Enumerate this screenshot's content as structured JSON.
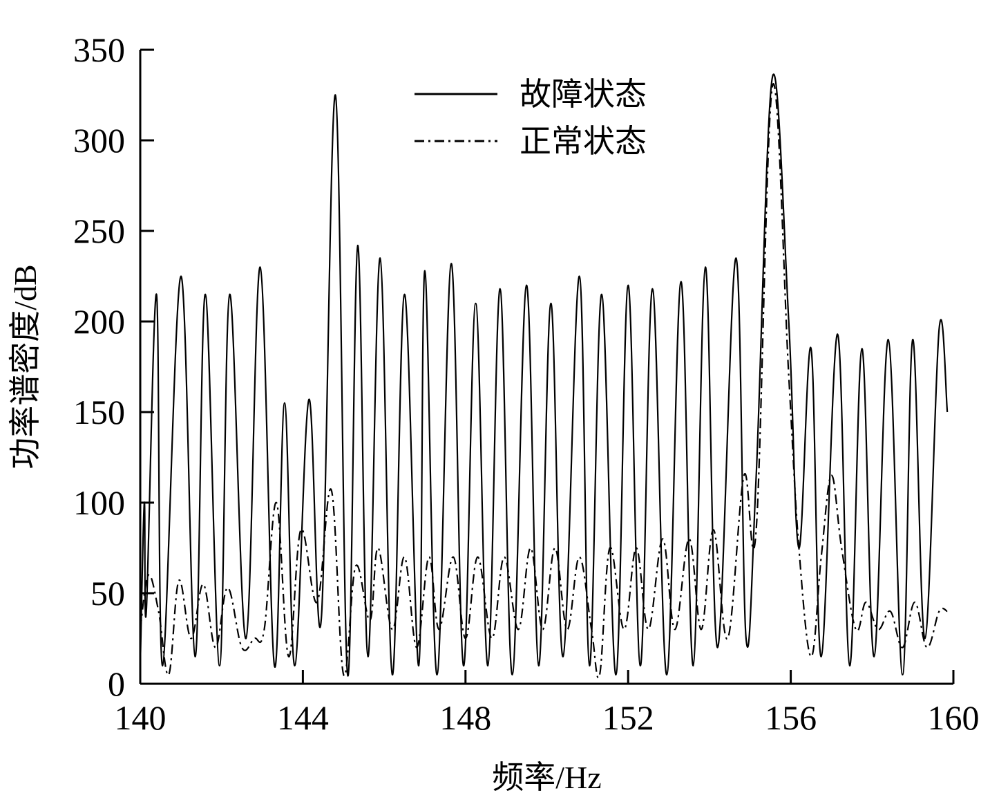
{
  "chart_data": {
    "type": "line",
    "title": "",
    "xlabel": "频率/Hz",
    "ylabel": "功率谱密度/dB",
    "xlim": [
      140,
      160
    ],
    "ylim": [
      0,
      350
    ],
    "x_ticks": [
      140,
      144,
      148,
      152,
      156,
      160
    ],
    "x_tick_labels": [
      "140",
      "144",
      "148",
      "152",
      "156",
      "160"
    ],
    "y_ticks": [
      0,
      50,
      100,
      150,
      200,
      250,
      300,
      350
    ],
    "y_tick_labels": [
      "0",
      "50",
      "100",
      "150",
      "200",
      "250",
      "300",
      "350"
    ],
    "grid": false,
    "legend_position": "top-center",
    "series": [
      {
        "name": "故障状态",
        "line_style": "solid",
        "color": "#000000",
        "peaks": [
          [
            140.0,
            10
          ],
          [
            140.1,
            100
          ],
          [
            140.15,
            40
          ],
          [
            140.4,
            215
          ],
          [
            140.55,
            10
          ],
          [
            141.0,
            225
          ],
          [
            141.35,
            15
          ],
          [
            141.6,
            215
          ],
          [
            141.95,
            10
          ],
          [
            142.2,
            215
          ],
          [
            142.6,
            25
          ],
          [
            142.95,
            230
          ],
          [
            143.3,
            10
          ],
          [
            143.55,
            155
          ],
          [
            143.8,
            10
          ],
          [
            144.15,
            157
          ],
          [
            144.45,
            35
          ],
          [
            144.8,
            325
          ],
          [
            145.1,
            5
          ],
          [
            145.35,
            242
          ],
          [
            145.6,
            15
          ],
          [
            145.9,
            235
          ],
          [
            146.2,
            5
          ],
          [
            146.5,
            215
          ],
          [
            146.85,
            10
          ],
          [
            147.0,
            228
          ],
          [
            147.3,
            5
          ],
          [
            147.65,
            232
          ],
          [
            147.95,
            10
          ],
          [
            148.25,
            210
          ],
          [
            148.55,
            10
          ],
          [
            148.85,
            218
          ],
          [
            149.15,
            5
          ],
          [
            149.5,
            220
          ],
          [
            149.8,
            10
          ],
          [
            150.1,
            210
          ],
          [
            150.4,
            15
          ],
          [
            150.8,
            225
          ],
          [
            151.05,
            10
          ],
          [
            151.35,
            215
          ],
          [
            151.7,
            5
          ],
          [
            152.0,
            220
          ],
          [
            152.3,
            10
          ],
          [
            152.6,
            218
          ],
          [
            152.95,
            5
          ],
          [
            153.3,
            222
          ],
          [
            153.6,
            10
          ],
          [
            153.9,
            230
          ],
          [
            154.2,
            20
          ],
          [
            154.65,
            235
          ],
          [
            154.9,
            25
          ],
          [
            155.15,
            115
          ],
          [
            155.55,
            335
          ],
          [
            155.95,
            200
          ],
          [
            156.2,
            75
          ],
          [
            156.5,
            185
          ],
          [
            156.75,
            15
          ],
          [
            157.15,
            193
          ],
          [
            157.45,
            10
          ],
          [
            157.75,
            185
          ],
          [
            158.05,
            15
          ],
          [
            158.4,
            190
          ],
          [
            158.75,
            5
          ],
          [
            159.0,
            190
          ],
          [
            159.3,
            25
          ],
          [
            159.65,
            196
          ],
          [
            159.85,
            150
          ]
        ]
      },
      {
        "name": "正常状态",
        "line_style": "dashdot",
        "color": "#000000",
        "peaks": [
          [
            140.0,
            30
          ],
          [
            140.2,
            60
          ],
          [
            140.45,
            40
          ],
          [
            140.7,
            5
          ],
          [
            140.95,
            57
          ],
          [
            141.25,
            25
          ],
          [
            141.55,
            55
          ],
          [
            141.85,
            20
          ],
          [
            142.15,
            53
          ],
          [
            142.5,
            20
          ],
          [
            142.8,
            25
          ],
          [
            143.05,
            30
          ],
          [
            143.35,
            100
          ],
          [
            143.65,
            15
          ],
          [
            143.95,
            85
          ],
          [
            144.35,
            45
          ],
          [
            144.7,
            107
          ],
          [
            145.0,
            5
          ],
          [
            145.3,
            65
          ],
          [
            145.65,
            35
          ],
          [
            145.85,
            75
          ],
          [
            146.2,
            30
          ],
          [
            146.5,
            70
          ],
          [
            146.8,
            20
          ],
          [
            147.1,
            70
          ],
          [
            147.35,
            30
          ],
          [
            147.7,
            70
          ],
          [
            148.0,
            25
          ],
          [
            148.3,
            70
          ],
          [
            148.65,
            25
          ],
          [
            148.95,
            70
          ],
          [
            149.3,
            30
          ],
          [
            149.6,
            75
          ],
          [
            149.9,
            30
          ],
          [
            150.2,
            75
          ],
          [
            150.5,
            30
          ],
          [
            150.8,
            70
          ],
          [
            151.1,
            30
          ],
          [
            151.3,
            5
          ],
          [
            151.55,
            75
          ],
          [
            151.9,
            30
          ],
          [
            152.2,
            75
          ],
          [
            152.5,
            30
          ],
          [
            152.85,
            80
          ],
          [
            153.15,
            30
          ],
          [
            153.5,
            80
          ],
          [
            153.8,
            30
          ],
          [
            154.1,
            85
          ],
          [
            154.45,
            25
          ],
          [
            154.85,
            115
          ],
          [
            155.15,
            85
          ],
          [
            155.55,
            330
          ],
          [
            155.95,
            170
          ],
          [
            156.2,
            75
          ],
          [
            156.5,
            15
          ],
          [
            156.75,
            70
          ],
          [
            157.0,
            115
          ],
          [
            157.25,
            75
          ],
          [
            157.6,
            30
          ],
          [
            157.85,
            45
          ],
          [
            158.15,
            30
          ],
          [
            158.45,
            40
          ],
          [
            158.75,
            20
          ],
          [
            159.05,
            45
          ],
          [
            159.35,
            20
          ],
          [
            159.65,
            40
          ],
          [
            159.85,
            40
          ]
        ]
      }
    ]
  }
}
